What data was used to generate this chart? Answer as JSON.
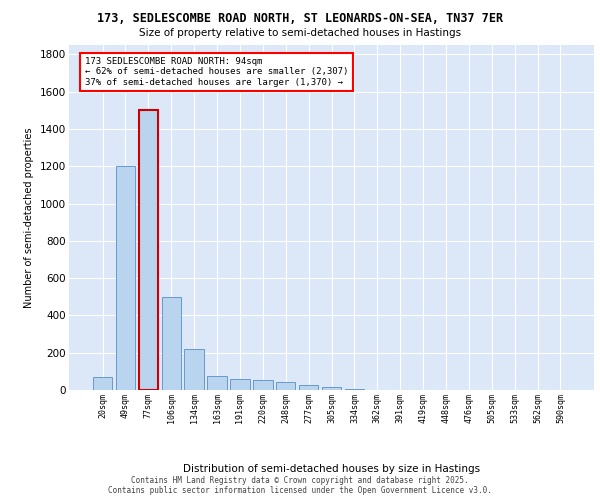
{
  "title_line1": "173, SEDLESCOMBE ROAD NORTH, ST LEONARDS-ON-SEA, TN37 7ER",
  "title_line2": "Size of property relative to semi-detached houses in Hastings",
  "xlabel": "Distribution of semi-detached houses by size in Hastings",
  "ylabel": "Number of semi-detached properties",
  "categories": [
    "20sqm",
    "49sqm",
    "77sqm",
    "106sqm",
    "134sqm",
    "163sqm",
    "191sqm",
    "220sqm",
    "248sqm",
    "277sqm",
    "305sqm",
    "334sqm",
    "362sqm",
    "391sqm",
    "419sqm",
    "448sqm",
    "476sqm",
    "505sqm",
    "533sqm",
    "562sqm",
    "590sqm"
  ],
  "values": [
    70,
    1200,
    1500,
    500,
    220,
    75,
    60,
    55,
    45,
    25,
    15,
    5,
    0,
    0,
    0,
    0,
    0,
    0,
    0,
    0,
    0
  ],
  "bar_color": "#b8d4ee",
  "bar_edge_color": "#6699cc",
  "highlight_bar_index": 2,
  "highlight_edge_color": "#cc0000",
  "ylim": [
    0,
    1850
  ],
  "yticks": [
    0,
    200,
    400,
    600,
    800,
    1000,
    1200,
    1400,
    1600,
    1800
  ],
  "bg_color": "#dce8f8",
  "ann_line1": "173 SEDLESCOMBE ROAD NORTH: 94sqm",
  "ann_line2": "← 62% of semi-detached houses are smaller (2,307)",
  "ann_line3": "37% of semi-detached houses are larger (1,370) →",
  "footer_line1": "Contains HM Land Registry data © Crown copyright and database right 2025.",
  "footer_line2": "Contains public sector information licensed under the Open Government Licence v3.0."
}
